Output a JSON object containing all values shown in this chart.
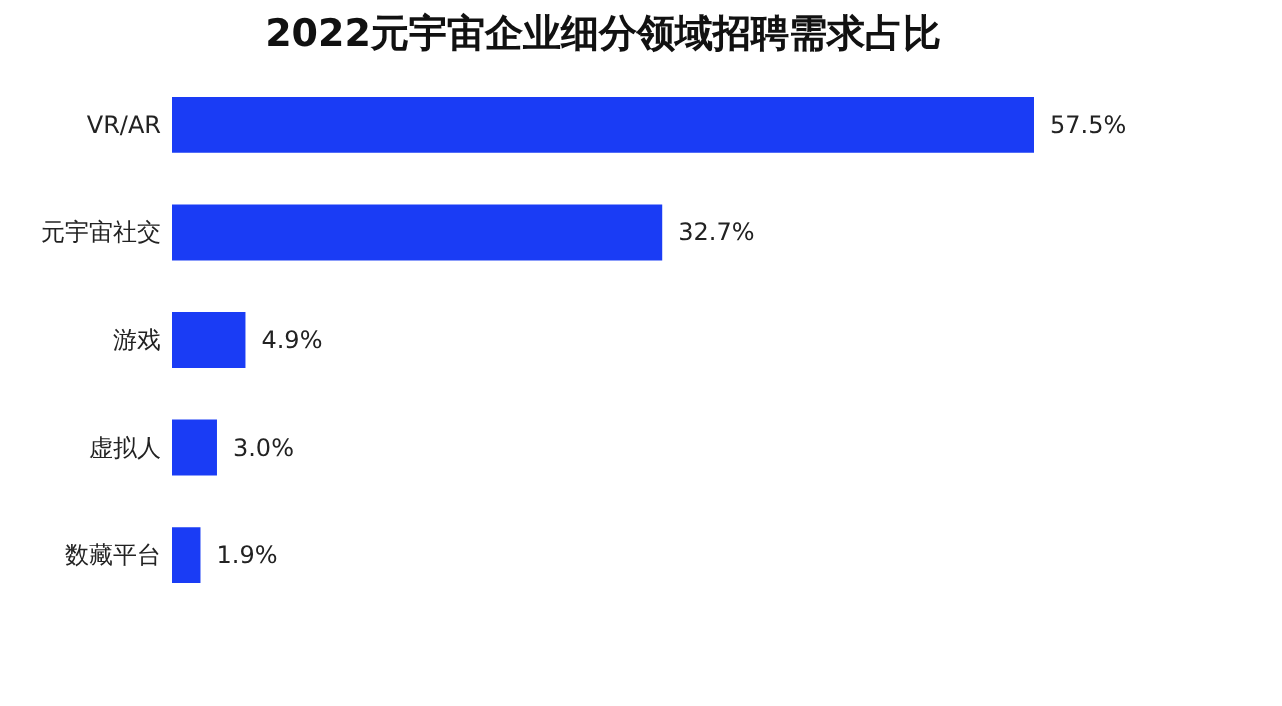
{
  "chart_data": {
    "type": "bar",
    "orientation": "horizontal",
    "title": "2022元宇宙企业细分领域招聘需求占比",
    "categories": [
      "VR/AR",
      "元宇宙社交",
      "游戏",
      "虚拟人",
      "数藏平台"
    ],
    "values": [
      57.5,
      32.7,
      4.9,
      3.0,
      1.9
    ],
    "value_labels": [
      "57.5%",
      "32.7%",
      "4.9%",
      "3.0%",
      "1.9%"
    ],
    "color": "#1a3cf5",
    "grid": false
  }
}
